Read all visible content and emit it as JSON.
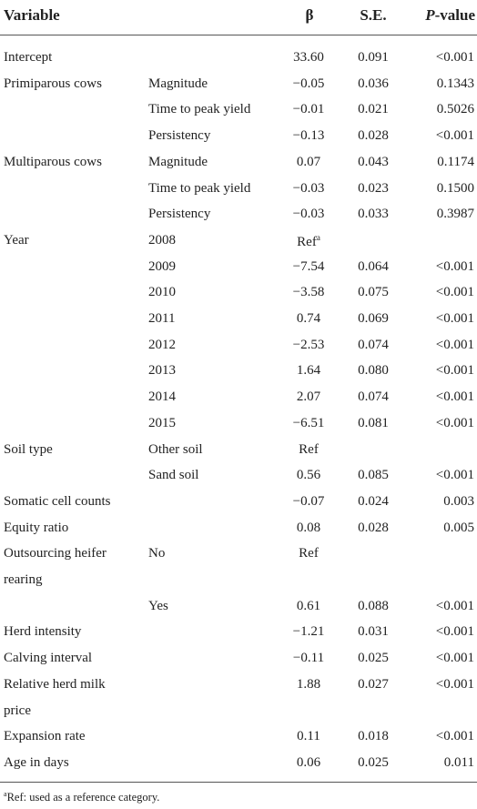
{
  "table": {
    "headers": {
      "variable": "Variable",
      "beta": "β",
      "se": "S.E.",
      "pvalue_italic": "P",
      "pvalue_rest": "-value"
    },
    "rows": [
      {
        "variable": "Intercept",
        "level": "",
        "beta": "33.60",
        "se": "0.091",
        "p": "<0.001"
      },
      {
        "variable": "Primiparous cows",
        "level": "Magnitude",
        "beta": "−0.05",
        "se": "0.036",
        "p": "0.1343"
      },
      {
        "variable": "",
        "level": "Time to peak yield",
        "beta": "−0.01",
        "se": "0.021",
        "p": "0.5026"
      },
      {
        "variable": "",
        "level": "Persistency",
        "beta": "−0.13",
        "se": "0.028",
        "p": "<0.001"
      },
      {
        "variable": "Multiparous cows",
        "level": "Magnitude",
        "beta": "0.07",
        "se": "0.043",
        "p": "0.1174"
      },
      {
        "variable": "",
        "level": "Time to peak yield",
        "beta": "−0.03",
        "se": "0.023",
        "p": "0.1500"
      },
      {
        "variable": "",
        "level": "Persistency",
        "beta": "−0.03",
        "se": "0.033",
        "p": "0.3987"
      },
      {
        "variable": "Year",
        "level": "2008",
        "beta": "Ref",
        "beta_sup": "a",
        "se": "",
        "p": ""
      },
      {
        "variable": "",
        "level": "2009",
        "beta": "−7.54",
        "se": "0.064",
        "p": "<0.001"
      },
      {
        "variable": "",
        "level": "2010",
        "beta": "−3.58",
        "se": "0.075",
        "p": "<0.001"
      },
      {
        "variable": "",
        "level": "2011",
        "beta": "0.74",
        "se": "0.069",
        "p": "<0.001"
      },
      {
        "variable": "",
        "level": "2012",
        "beta": "−2.53",
        "se": "0.074",
        "p": "<0.001"
      },
      {
        "variable": "",
        "level": "2013",
        "beta": "1.64",
        "se": "0.080",
        "p": "<0.001"
      },
      {
        "variable": "",
        "level": "2014",
        "beta": "2.07",
        "se": "0.074",
        "p": "<0.001"
      },
      {
        "variable": "",
        "level": "2015",
        "beta": "−6.51",
        "se": "0.081",
        "p": "<0.001"
      },
      {
        "variable": "Soil type",
        "level": "Other soil",
        "beta": "Ref",
        "se": "",
        "p": ""
      },
      {
        "variable": "",
        "level": "Sand soil",
        "beta": "0.56",
        "se": "0.085",
        "p": "<0.001"
      },
      {
        "variable": "Somatic cell counts",
        "level": "",
        "beta": "−0.07",
        "se": "0.024",
        "p": "0.003"
      },
      {
        "variable": "Equity ratio",
        "level": "",
        "beta": "0.08",
        "se": "0.028",
        "p": "0.005"
      },
      {
        "variable": "Outsourcing heifer",
        "level": "No",
        "beta": "Ref",
        "se": "",
        "p": ""
      },
      {
        "variable": "rearing",
        "level": "",
        "beta": "",
        "se": "",
        "p": ""
      },
      {
        "variable": "",
        "level": "Yes",
        "beta": "0.61",
        "se": "0.088",
        "p": "<0.001"
      },
      {
        "variable": "Herd intensity",
        "level": "",
        "beta": "−1.21",
        "se": "0.031",
        "p": "<0.001"
      },
      {
        "variable": "Calving interval",
        "level": "",
        "beta": "−0.11",
        "se": "0.025",
        "p": "<0.001"
      },
      {
        "variable": "Relative herd milk",
        "level": "",
        "beta": "1.88",
        "se": "0.027",
        "p": "<0.001"
      },
      {
        "variable": "price",
        "level": "",
        "beta": "",
        "se": "",
        "p": ""
      },
      {
        "variable": "Expansion rate",
        "level": "",
        "beta": "0.11",
        "se": "0.018",
        "p": "<0.001"
      },
      {
        "variable": "Age in days",
        "level": "",
        "beta": "0.06",
        "se": "0.025",
        "p": "0.011"
      }
    ]
  },
  "footnote": {
    "sup": "a",
    "text": "Ref: used as a reference category."
  }
}
